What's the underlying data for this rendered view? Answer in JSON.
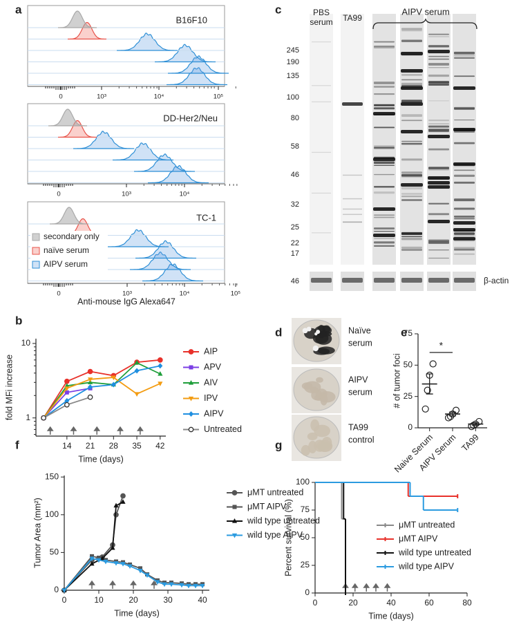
{
  "panel_labels": [
    "a",
    "b",
    "c",
    "d",
    "e",
    "f",
    "g"
  ],
  "flow": {
    "plots": [
      {
        "title": "B16F10",
        "tick_labels": [
          "0",
          "10³",
          "10⁴",
          "10⁵"
        ]
      },
      {
        "title": "DD-Her2/Neu",
        "tick_labels": [
          "0",
          "10³",
          "10⁴"
        ]
      },
      {
        "title": "TC-1",
        "tick_labels": [
          "0",
          "10³",
          "10⁴",
          "10⁵"
        ]
      }
    ],
    "legend": [
      "secondary only",
      "naïve serum",
      "AIPV serum"
    ],
    "x_label": "Anti-mouse IgG Alexa647"
  },
  "blot": {
    "lanes": [
      [
        "PBS",
        "serum"
      ],
      [
        "TA99"
      ],
      [
        "AIPV serum"
      ]
    ],
    "markers": [
      245,
      190,
      135,
      100,
      80,
      58,
      46,
      32,
      25,
      22,
      17
    ],
    "actin_marker": 46,
    "actin_label": "β-actin"
  },
  "photos": {
    "labels": [
      [
        "Naïve",
        "serum"
      ],
      [
        "AIPV",
        "serum"
      ],
      [
        "TA99",
        "control"
      ]
    ]
  },
  "chart_data": [
    {
      "type": "line",
      "y_label": "fold MFi increase",
      "x_label": "Time (days)",
      "log_y": true,
      "xlim": [
        4.7,
        43.7
      ],
      "ylim": [
        0.57,
        11.6
      ],
      "xticks": [
        14,
        21,
        28,
        35,
        42
      ],
      "yticks": [
        1,
        10
      ],
      "x": [
        7,
        14,
        21,
        28,
        35,
        42
      ],
      "treatment_days": [
        9,
        16,
        23,
        30,
        36
      ],
      "series": [
        {
          "name": "AIP",
          "color": "#e8312a",
          "marker": "circle",
          "values": [
            1,
            3.1,
            4.2,
            3.7,
            5.6,
            6.0
          ]
        },
        {
          "name": "APV",
          "color": "#7b3fe4",
          "marker": "square",
          "values": [
            1,
            2.2,
            2.5,
            null,
            null,
            null
          ]
        },
        {
          "name": "AIV",
          "color": "#1e9e3a",
          "marker": "triangle-up",
          "values": [
            1,
            2.7,
            3.0,
            2.8,
            5.5,
            3.9
          ]
        },
        {
          "name": "IPV",
          "color": "#f39c12",
          "marker": "triangle-down",
          "values": [
            1,
            2.5,
            3.3,
            3.5,
            2.1,
            2.9
          ]
        },
        {
          "name": "AIPV",
          "color": "#1f8fe0",
          "marker": "diamond",
          "values": [
            1,
            1.7,
            2.6,
            2.8,
            4.3,
            5.0
          ]
        },
        {
          "name": "Untreated",
          "color": "#888888",
          "marker": "open-circle",
          "values": [
            1,
            1.5,
            1.9,
            null,
            null,
            null
          ]
        }
      ]
    },
    {
      "type": "dot",
      "y_label": "# of tumor foci",
      "categories": [
        "Naive Serum",
        "AIPV Serum",
        "TA99"
      ],
      "ylim": [
        0,
        75
      ],
      "yticks": [
        0,
        25,
        50,
        75
      ],
      "values": [
        [
          51,
          42,
          30,
          15
        ],
        [
          14,
          11,
          9,
          8
        ],
        [
          5,
          3,
          2,
          1
        ]
      ],
      "means": [
        35,
        11,
        3
      ],
      "sems": [
        8,
        1.5,
        1
      ],
      "significance": "*"
    },
    {
      "type": "line",
      "y_label": "Tumor Area (mm²)",
      "x_label": "Time (days)",
      "xlim": [
        0,
        42
      ],
      "ylim": [
        0,
        152
      ],
      "xticks": [
        0,
        10,
        20,
        30,
        40
      ],
      "yticks": [
        0,
        50,
        100,
        150
      ],
      "treatment_days": [
        8,
        14,
        20,
        26
      ],
      "series": [
        {
          "name": "μMT untreated",
          "color": "#555555",
          "marker": "circle",
          "x": [
            0,
            8,
            11,
            14,
            15,
            17
          ],
          "values": [
            0,
            40,
            44,
            60,
            100,
            125
          ]
        },
        {
          "name": "μMT AIPV",
          "color": "#555555",
          "marker": "square",
          "x": [
            0,
            8,
            10,
            12,
            15,
            17,
            19,
            22,
            24,
            27,
            29,
            31,
            34,
            36,
            38,
            40
          ],
          "values": [
            0,
            45,
            43,
            40,
            38,
            37,
            34,
            29,
            21,
            13,
            10,
            10,
            9,
            8,
            8,
            8
          ]
        },
        {
          "name": "wild type untreated",
          "color": "#111111",
          "marker": "triangle-up",
          "x": [
            0,
            8,
            11,
            14,
            15,
            17
          ],
          "values": [
            0,
            35,
            42,
            56,
            112,
            117
          ]
        },
        {
          "name": "wild type AIPV",
          "color": "#2b9be0",
          "marker": "triangle-down",
          "x": [
            0,
            8,
            10,
            12,
            15,
            17,
            19,
            22,
            24,
            27,
            29,
            31,
            34,
            36,
            38,
            40
          ],
          "values": [
            0,
            42,
            40,
            38,
            36,
            35,
            32,
            26,
            20,
            11,
            8,
            8,
            7,
            6,
            6,
            6
          ]
        }
      ]
    },
    {
      "type": "step",
      "y_label": "Percent survival (%)",
      "x_label": "Time (days)",
      "xlim": [
        0,
        80
      ],
      "ylim": [
        0,
        100
      ],
      "xticks": [
        0,
        20,
        40,
        60,
        80
      ],
      "yticks": [
        0,
        25,
        50,
        75,
        100
      ],
      "treatment_days": [
        16,
        21,
        27,
        32,
        38
      ],
      "series": [
        {
          "name": "μMT untreated",
          "color": "#888888",
          "x": [
            0,
            14,
            16
          ],
          "values": [
            100,
            67,
            0
          ]
        },
        {
          "name": "μMT AIPV",
          "color": "#e8312a",
          "x": [
            0,
            49,
            75
          ],
          "values": [
            100,
            87.5,
            87.5
          ]
        },
        {
          "name": "wild type untreated",
          "color": "#111111",
          "x": [
            0,
            15,
            16
          ],
          "values": [
            100,
            67,
            0
          ]
        },
        {
          "name": "wild type AIPV",
          "color": "#2b9be0",
          "x": [
            0,
            50,
            57,
            75
          ],
          "values": [
            100,
            87.5,
            75,
            75
          ]
        }
      ]
    }
  ]
}
